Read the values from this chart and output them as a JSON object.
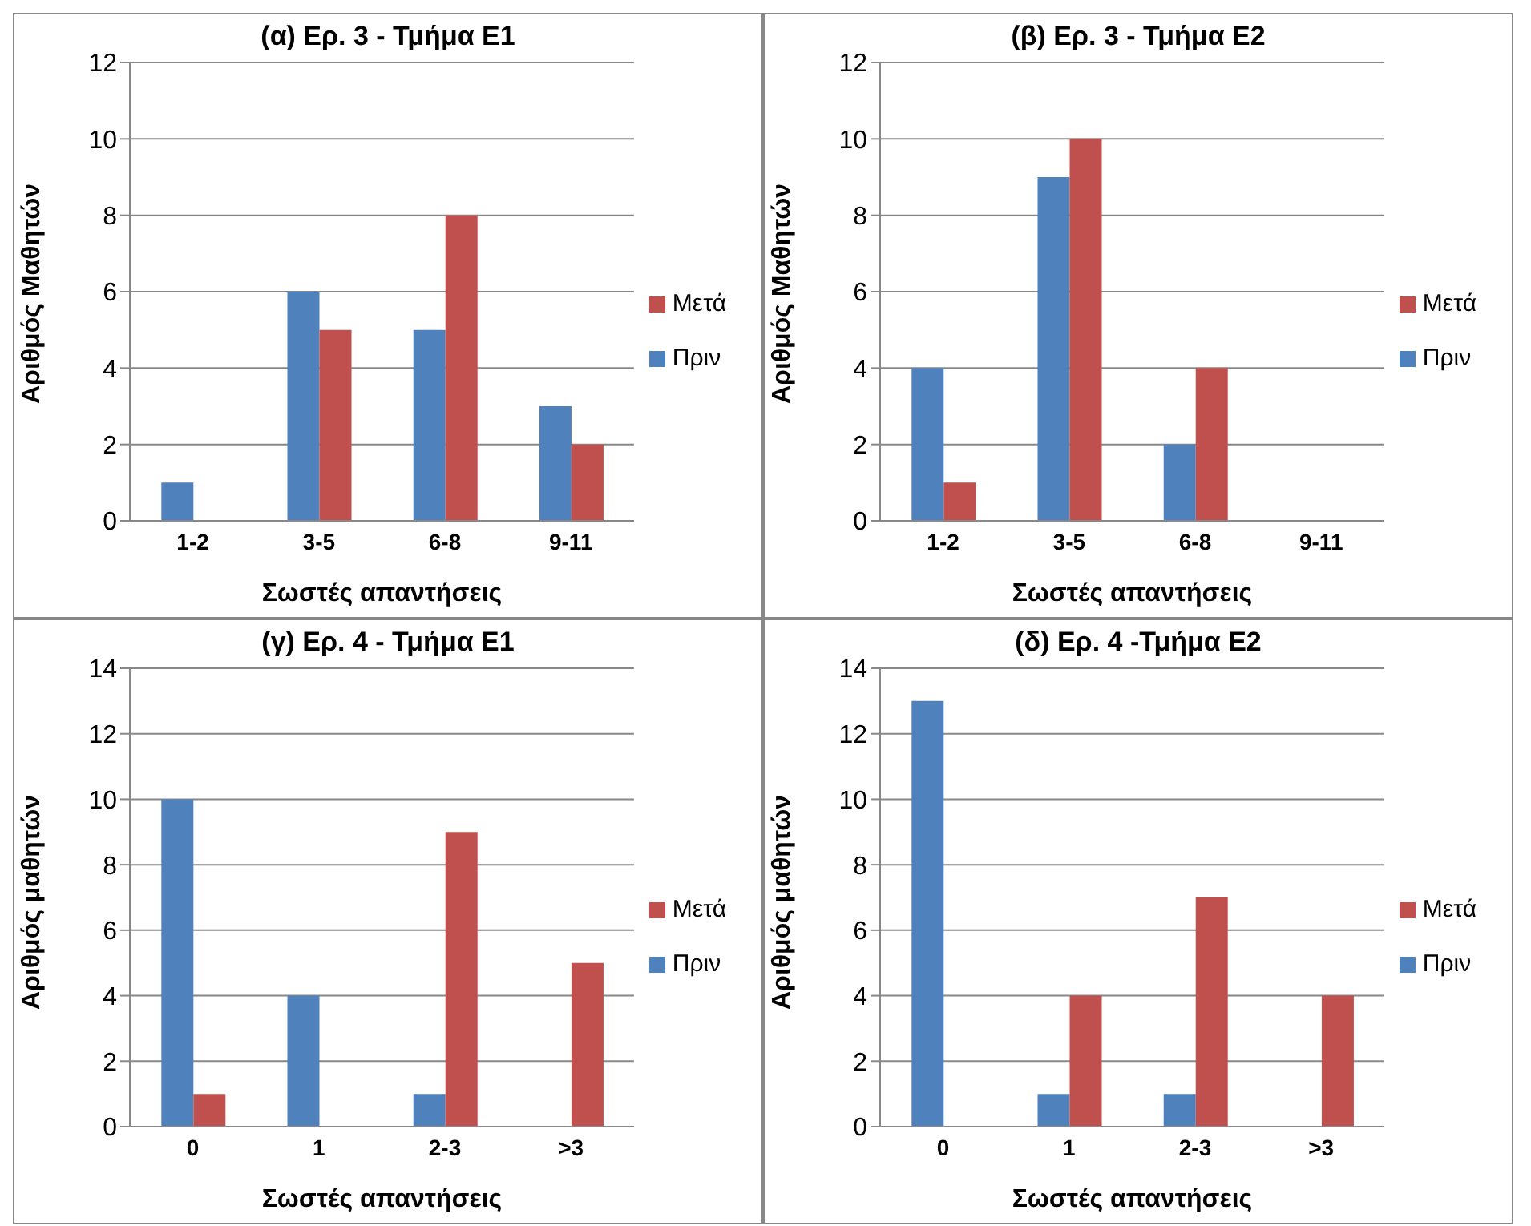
{
  "chart_data": [
    {
      "type": "bar",
      "title": "(α) Ερ. 3 - Τμήμα Ε1",
      "xlabel": "Σωστές απαντήσεις",
      "ylabel": "Αριθμός Μαθητών",
      "categories": [
        "1-2",
        "3-5",
        "6-8",
        "9-11"
      ],
      "series": [
        {
          "name": "Πριν",
          "color": "#4f81bd",
          "values": [
            1,
            6,
            5,
            3
          ]
        },
        {
          "name": "Μετά",
          "color": "#c0504d",
          "values": [
            0,
            5,
            8,
            2
          ]
        }
      ],
      "ylim": [
        0,
        12
      ],
      "yticks": [
        0,
        2,
        4,
        6,
        8,
        10,
        12
      ],
      "grid": "y",
      "legend": "right"
    },
    {
      "type": "bar",
      "title": "(β) Ερ. 3 - Τμήμα Ε2",
      "xlabel": "Σωστές απαντήσεις",
      "ylabel": "Αριθμός Μαθητών",
      "categories": [
        "1-2",
        "3-5",
        "6-8",
        "9-11"
      ],
      "series": [
        {
          "name": "Πριν",
          "color": "#4f81bd",
          "values": [
            4,
            9,
            2,
            0
          ]
        },
        {
          "name": "Μετά",
          "color": "#c0504d",
          "values": [
            1,
            10,
            4,
            0
          ]
        }
      ],
      "ylim": [
        0,
        12
      ],
      "yticks": [
        0,
        2,
        4,
        6,
        8,
        10,
        12
      ],
      "grid": "y",
      "legend": "right"
    },
    {
      "type": "bar",
      "title": "(γ) Ερ. 4 - Τμήμα Ε1",
      "xlabel": "Σωστές απαντήσεις",
      "ylabel": "Αριθμός μαθητών",
      "categories": [
        "0",
        "1",
        "2-3",
        ">3"
      ],
      "series": [
        {
          "name": "Πριν",
          "color": "#4f81bd",
          "values": [
            10,
            4,
            1,
            0
          ]
        },
        {
          "name": "Μετά",
          "color": "#c0504d",
          "values": [
            1,
            0,
            9,
            5
          ]
        }
      ],
      "ylim": [
        0,
        14
      ],
      "yticks": [
        0,
        2,
        4,
        6,
        8,
        10,
        12,
        14
      ],
      "grid": "y",
      "legend": "right"
    },
    {
      "type": "bar",
      "title": "(δ) Ερ. 4 -Τμήμα Ε2",
      "xlabel": "Σωστές απαντήσεις",
      "ylabel": "Αριθμός μαθητών",
      "categories": [
        "0",
        "1",
        "2-3",
        ">3"
      ],
      "series": [
        {
          "name": "Πριν",
          "color": "#4f81bd",
          "values": [
            13,
            1,
            1,
            0
          ]
        },
        {
          "name": "Μετά",
          "color": "#c0504d",
          "values": [
            0,
            4,
            7,
            4
          ]
        }
      ],
      "ylim": [
        0,
        14
      ],
      "yticks": [
        0,
        2,
        4,
        6,
        8,
        10,
        12,
        14
      ],
      "grid": "y",
      "legend": "right"
    }
  ]
}
